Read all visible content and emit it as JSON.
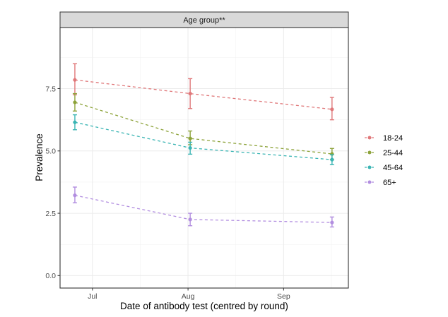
{
  "chart_data": {
    "type": "line",
    "title": "",
    "facet_label": "Age group**",
    "xlabel": "Date of antibody test (centred by round)",
    "ylabel": "Prevalence",
    "x_unit": "days since Jul 1",
    "x": [
      -5.7,
      31.7,
      77.7
    ],
    "xlim": [
      -10.5,
      83
    ],
    "x_ticks": [
      {
        "value": 0,
        "label": "Jul"
      },
      {
        "value": 31,
        "label": "Aug"
      },
      {
        "value": 62,
        "label": "Sep"
      }
    ],
    "ylim": [
      -0.5,
      9.95
    ],
    "y_ticks": [
      {
        "value": 0.0,
        "label": "0.0"
      },
      {
        "value": 2.5,
        "label": "2.5"
      },
      {
        "value": 5.0,
        "label": "5.0"
      },
      {
        "value": 7.5,
        "label": "7.5"
      }
    ],
    "y_minor": [
      1.25,
      3.75,
      6.25,
      8.75
    ],
    "x_minor": [
      -15.5,
      15.5,
      46.5,
      77.5
    ],
    "grid": true,
    "legend_position": "right",
    "series": [
      {
        "name": "18-24",
        "color": "#E0787A",
        "values": [
          7.85,
          7.3,
          6.67
        ],
        "upper": [
          8.5,
          7.9,
          7.15
        ],
        "lower": [
          7.25,
          6.7,
          6.25
        ]
      },
      {
        "name": "25-44",
        "color": "#8DA33A",
        "values": [
          6.95,
          5.5,
          4.88
        ],
        "upper": [
          7.3,
          5.8,
          5.1
        ],
        "lower": [
          6.6,
          5.25,
          4.65
        ]
      },
      {
        "name": "45-64",
        "color": "#3BB5B4",
        "values": [
          6.15,
          5.12,
          4.65
        ],
        "upper": [
          6.45,
          5.35,
          4.85
        ],
        "lower": [
          5.85,
          4.87,
          4.45
        ]
      },
      {
        "name": "65+",
        "color": "#B28EE0",
        "values": [
          3.22,
          2.25,
          2.13
        ],
        "upper": [
          3.55,
          2.5,
          2.35
        ],
        "lower": [
          2.92,
          2.0,
          1.95
        ]
      }
    ]
  }
}
